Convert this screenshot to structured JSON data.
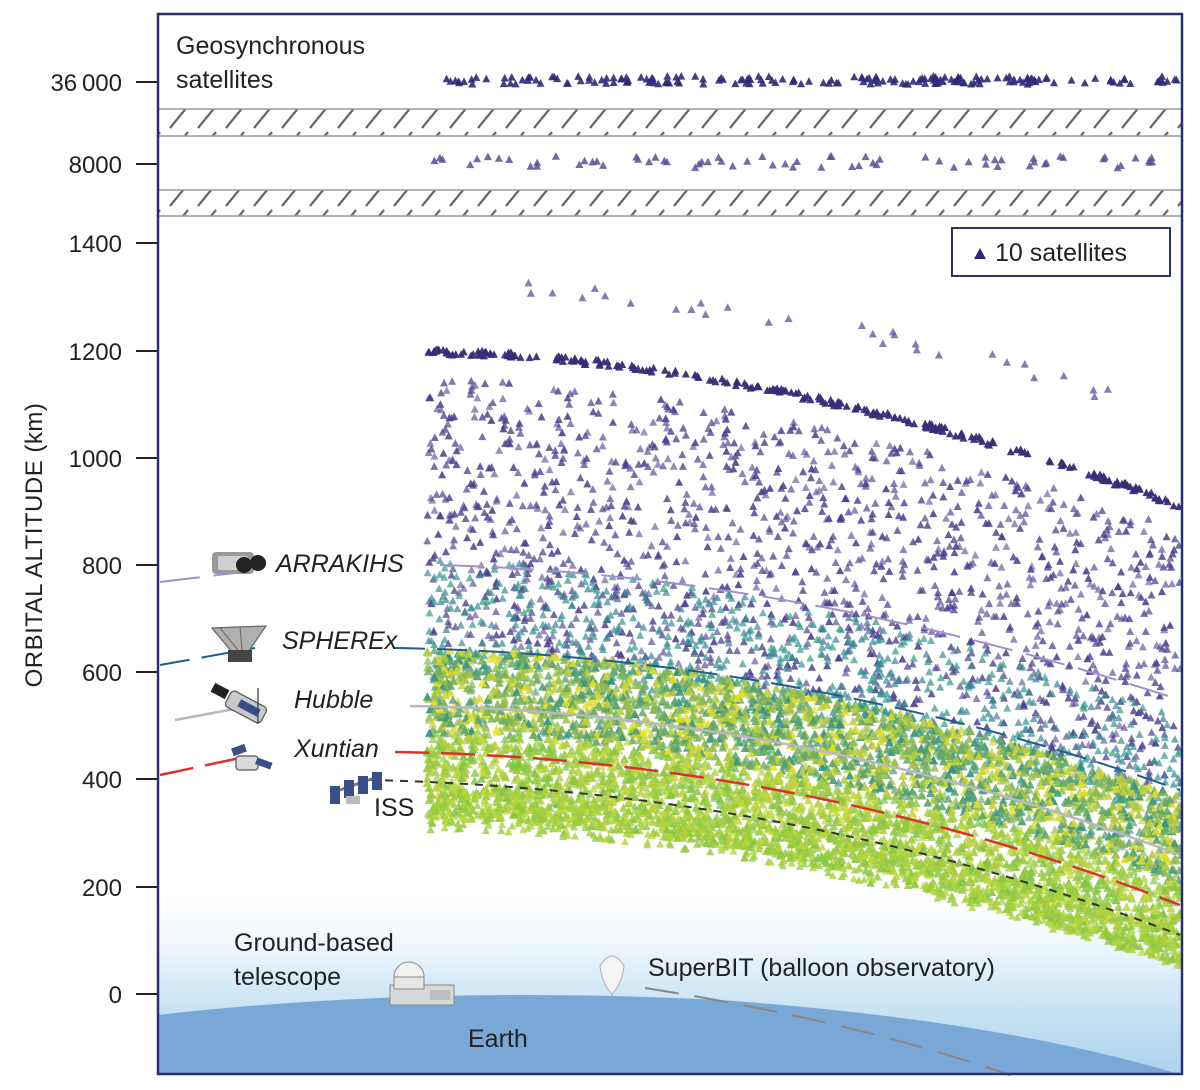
{
  "axis": {
    "title": "ORBITAL ALTITUDE (km)",
    "ticks": [
      {
        "label": "36 000",
        "value": 36000
      },
      {
        "label": "8000",
        "value": 8000
      },
      {
        "label": "1400",
        "value": 1400
      },
      {
        "label": "1200",
        "value": 1200
      },
      {
        "label": "1000",
        "value": 1000
      },
      {
        "label": "800",
        "value": 800
      },
      {
        "label": "600",
        "value": 600
      },
      {
        "label": "400",
        "value": 400
      },
      {
        "label": "200",
        "value": 200
      },
      {
        "label": "0",
        "value": 0
      }
    ]
  },
  "labels": {
    "geo_line1": "Geosynchronous",
    "geo_line2": "satellites",
    "ground_line1": "Ground-based",
    "ground_line2": "telescope",
    "earth": "Earth",
    "superbit": "SuperBIT (balloon observatory)"
  },
  "legend": {
    "text": "10 satellites"
  },
  "telescopes": [
    {
      "name": "ARRAKIHS",
      "altitude_km": 800,
      "italic": true,
      "color": "#a48fcc",
      "icon": "arrakihs-icon"
    },
    {
      "name": "SPHEREx",
      "altitude_km": 650,
      "italic": true,
      "color": "#1f5f8b",
      "icon": "spherex-icon"
    },
    {
      "name": "Hubble",
      "altitude_km": 540,
      "italic": true,
      "color": "#b8b8c4",
      "icon": "hubble-icon"
    },
    {
      "name": "Xuntian",
      "altitude_km": 450,
      "italic": true,
      "color": "#d9342b",
      "icon": "xuntian-icon"
    },
    {
      "name": "ISS",
      "altitude_km": 400,
      "italic": false,
      "color": "#333333",
      "icon": "iss-icon"
    }
  ],
  "colors": {
    "frame": "#2b2f6b",
    "marker": "#2e2a78",
    "sky": "#cfe6f4",
    "earth": "#7aa8d6",
    "hatch": "#888888"
  }
}
